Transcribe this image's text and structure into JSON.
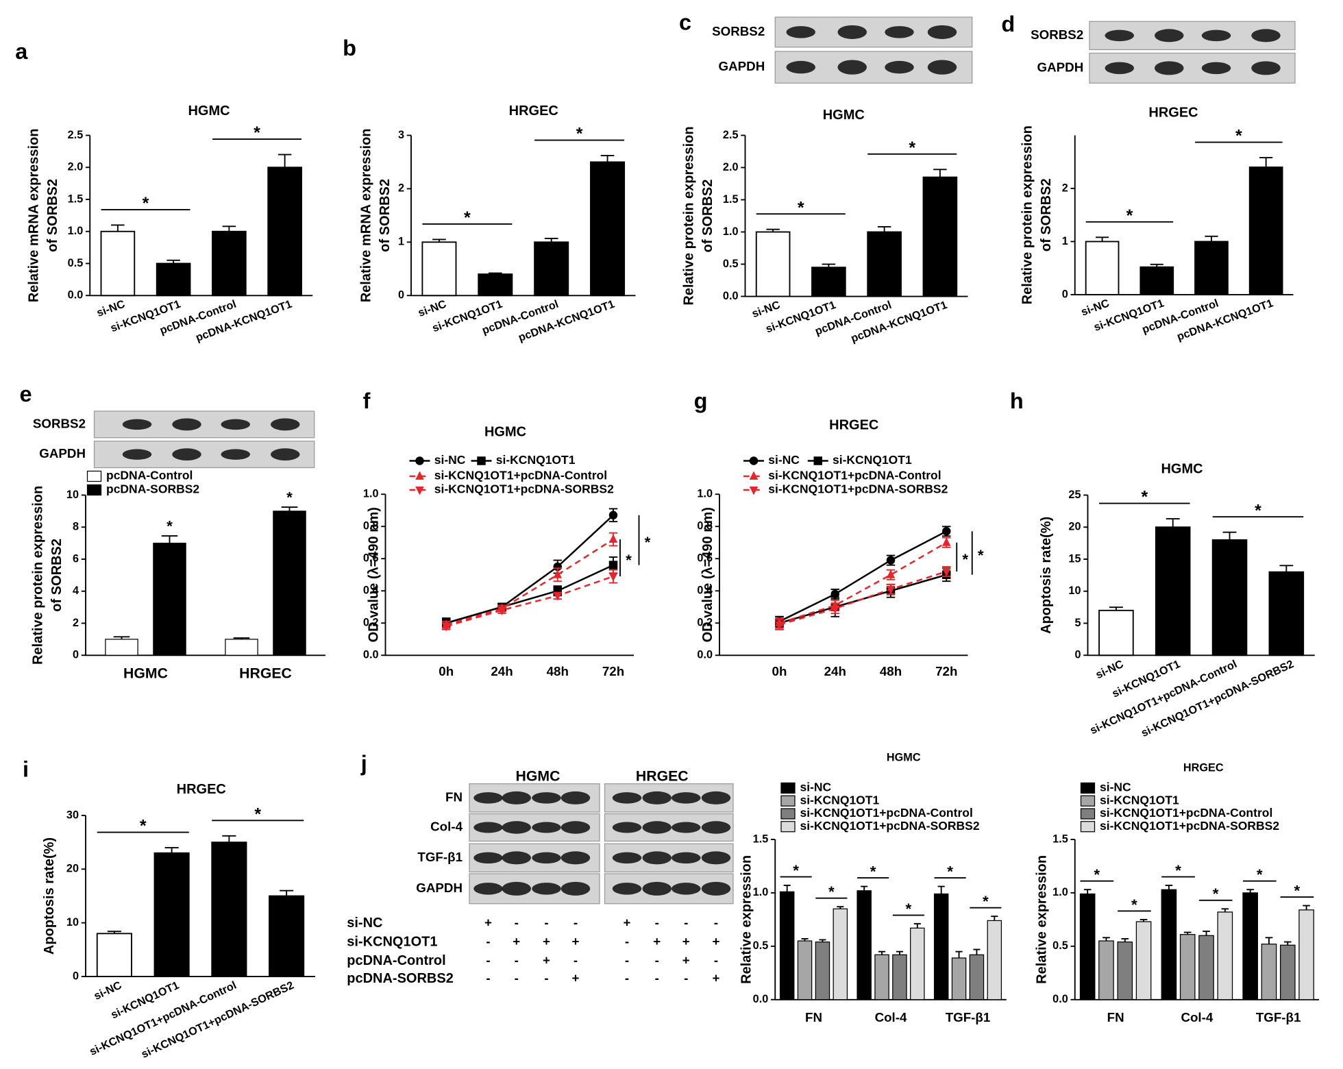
{
  "chart_data": [
    {
      "type": "bar",
      "panel": "a",
      "title": "HGMC",
      "ylabel": [
        "Relative mRNA expression",
        "of SORBS2"
      ],
      "categories": [
        "si-NC",
        "si-KCNQ1OT1",
        "pcDNA-Control",
        "pcDNA-KCNQ1OT1"
      ],
      "values": [
        1.0,
        0.5,
        1.0,
        2.0
      ],
      "errors": [
        0.1,
        0.05,
        0.08,
        0.2
      ],
      "colors": [
        "#ffffff",
        "#000000",
        "#000000",
        "#000000"
      ],
      "ylim": [
        0,
        2.5
      ],
      "yticks": [
        {
          "value": 0,
          "label": "0.0"
        },
        {
          "value": 0.5,
          "label": "0.5"
        },
        {
          "value": 1,
          "label": "1.0"
        },
        {
          "value": 1.5,
          "label": "1.5"
        },
        {
          "value": 2,
          "label": "2.0"
        },
        {
          "value": 2.5,
          "label": "2.5"
        }
      ],
      "annotations": [
        "*",
        "*"
      ]
    },
    {
      "type": "bar",
      "panel": "b",
      "title": "HRGEC",
      "ylabel": [
        "Relative mRNA expression",
        "of SORBS2"
      ],
      "categories": [
        "si-NC",
        "si-KCNQ1OT1",
        "pcDNA-Control",
        "pcDNA-KCNQ1OT1"
      ],
      "values": [
        1.0,
        0.4,
        1.0,
        2.5
      ],
      "errors": [
        0.05,
        0.02,
        0.07,
        0.12
      ],
      "colors": [
        "#ffffff",
        "#000000",
        "#000000",
        "#000000"
      ],
      "ylim": [
        0,
        3
      ],
      "yticks": [
        0,
        1,
        2,
        3
      ],
      "annotations": [
        "*",
        "*"
      ]
    },
    {
      "type": "bar",
      "panel": "c",
      "title": "HGMC",
      "ylabel": [
        "Relative protein expression",
        "of SORBS2"
      ],
      "blot": {
        "rows": [
          "SORBS2",
          "GAPDH"
        ]
      },
      "categories": [
        "si-NC",
        "si-KCNQ1OT1",
        "pcDNA-Control",
        "pcDNA-KCNQ1OT1"
      ],
      "values": [
        1.0,
        0.45,
        1.0,
        1.85
      ],
      "errors": [
        0.04,
        0.05,
        0.08,
        0.12
      ],
      "colors": [
        "#ffffff",
        "#000000",
        "#000000",
        "#000000"
      ],
      "ylim": [
        0,
        2.5
      ],
      "yticks": [
        {
          "value": 0,
          "label": "0.0"
        },
        {
          "value": 0.5,
          "label": "0.5"
        },
        {
          "value": 1,
          "label": "1.0"
        },
        {
          "value": 1.5,
          "label": "1.5"
        },
        {
          "value": 2,
          "label": "2.0"
        },
        {
          "value": 2.5,
          "label": "2.5"
        }
      ],
      "annotations": [
        "*",
        "*"
      ]
    },
    {
      "type": "bar",
      "panel": "d",
      "title": "HRGEC",
      "ylabel": [
        "Relative protein expression",
        "of SORBS2"
      ],
      "blot": {
        "rows": [
          "SORBS2",
          "GAPDH"
        ]
      },
      "categories": [
        "si-NC",
        "si-KCNQ1OT1",
        "pcDNA-Control",
        "pcDNA-KCNQ1OT1"
      ],
      "values": [
        1.0,
        0.52,
        1.0,
        2.4
      ],
      "errors": [
        0.08,
        0.05,
        0.1,
        0.18
      ],
      "colors": [
        "#ffffff",
        "#000000",
        "#000000",
        "#000000"
      ],
      "ylim": [
        0,
        3
      ],
      "yticks": [
        0,
        1,
        2
      ],
      "annotations": [
        "*",
        "*"
      ]
    },
    {
      "type": "grouped_bar",
      "panel": "e",
      "ylabel": [
        "Relative protein expression",
        "of SORBS2"
      ],
      "blot": {
        "rows": [
          "SORBS2",
          "GAPDH"
        ]
      },
      "categories": [
        "HGMC",
        "HRGEC"
      ],
      "series": [
        {
          "name": "pcDNA-Control",
          "color": "#ffffff",
          "values": [
            1.0,
            1.0
          ],
          "errors": [
            0.15,
            0.08
          ]
        },
        {
          "name": "pcDNA-SORBS2",
          "color": "#000000",
          "values": [
            7.0,
            9.0
          ],
          "errors": [
            0.45,
            0.25
          ]
        }
      ],
      "ylim": [
        0,
        10
      ],
      "yticks": [
        0,
        2,
        4,
        6,
        8,
        10
      ],
      "annotations": [
        "*",
        "*"
      ]
    },
    {
      "type": "line",
      "panel": "f",
      "title": "HGMC",
      "ylabel": "OD value (λ=490 nm)",
      "categories": [
        "0h",
        "24h",
        "48h",
        "72h"
      ],
      "series": [
        {
          "name": "si-NC",
          "color": "#000000",
          "marker": "circle",
          "linestyle": "solid",
          "values": [
            0.2,
            0.3,
            0.55,
            0.87
          ],
          "errors": [
            0.03,
            0.02,
            0.04,
            0.04
          ]
        },
        {
          "name": "si-KCNQ1OT1",
          "color": "#000000",
          "marker": "square",
          "linestyle": "solid",
          "values": [
            0.2,
            0.3,
            0.4,
            0.56
          ],
          "errors": [
            0.03,
            0.02,
            0.03,
            0.05
          ]
        },
        {
          "name": "si-KCNQ1OT1+pcDNA-Control",
          "color": "#e8252a",
          "marker": "triangle",
          "linestyle": "dashed",
          "values": [
            0.19,
            0.29,
            0.5,
            0.72
          ],
          "errors": [
            0.02,
            0.02,
            0.04,
            0.04
          ]
        },
        {
          "name": "si-KCNQ1OT1+pcDNA-SORBS2",
          "color": "#e8252a",
          "marker": "triangle-down",
          "linestyle": "dashed",
          "values": [
            0.18,
            0.28,
            0.37,
            0.49
          ],
          "errors": [
            0.02,
            0.02,
            0.02,
            0.04
          ]
        }
      ],
      "ylim": [
        0,
        1.0
      ],
      "yticks": [
        {
          "value": 0,
          "label": "0.0"
        },
        {
          "value": 0.2,
          "label": "0.2"
        },
        {
          "value": 0.4,
          "label": "0.4"
        },
        {
          "value": 0.6,
          "label": "0.6"
        },
        {
          "value": 0.8,
          "label": "0.8"
        },
        {
          "value": 1,
          "label": "1.0"
        }
      ],
      "annotations": [
        "*",
        "*"
      ]
    },
    {
      "type": "line",
      "panel": "g",
      "title": "HRGEC",
      "ylabel": "OD value (λ=490 nm)",
      "categories": [
        "0h",
        "24h",
        "48h",
        "72h"
      ],
      "series": [
        {
          "name": "si-NC",
          "color": "#000000",
          "marker": "circle",
          "linestyle": "solid",
          "values": [
            0.21,
            0.38,
            0.59,
            0.77
          ],
          "errors": [
            0.03,
            0.03,
            0.03,
            0.03
          ]
        },
        {
          "name": "si-KCNQ1OT1",
          "color": "#000000",
          "marker": "square",
          "linestyle": "solid",
          "values": [
            0.2,
            0.3,
            0.4,
            0.5
          ],
          "errors": [
            0.04,
            0.06,
            0.04,
            0.04
          ]
        },
        {
          "name": "si-KCNQ1OT1+pcDNA-Control",
          "color": "#e8252a",
          "marker": "triangle",
          "linestyle": "dashed",
          "values": [
            0.2,
            0.31,
            0.5,
            0.7
          ],
          "errors": [
            0.03,
            0.03,
            0.03,
            0.03
          ]
        },
        {
          "name": "si-KCNQ1OT1+pcDNA-SORBS2",
          "color": "#e8252a",
          "marker": "triangle-down",
          "linestyle": "dashed",
          "values": [
            0.19,
            0.29,
            0.41,
            0.52
          ],
          "errors": [
            0.03,
            0.03,
            0.03,
            0.03
          ]
        }
      ],
      "ylim": [
        0,
        1.0
      ],
      "yticks": [
        {
          "value": 0,
          "label": "0.0"
        },
        {
          "value": 0.2,
          "label": "0.2"
        },
        {
          "value": 0.4,
          "label": "0.4"
        },
        {
          "value": 0.6,
          "label": "0.6"
        },
        {
          "value": 0.8,
          "label": "0.8"
        },
        {
          "value": 1,
          "label": "1.0"
        }
      ],
      "annotations": [
        "*",
        "*"
      ]
    },
    {
      "type": "bar",
      "panel": "h",
      "title": "HGMC",
      "ylabel": "Apoptosis rate(%)",
      "categories": [
        "si-NC",
        "si-KCNQ1OT1",
        "si-KCNQ1OT1+pcDNA-Control",
        "si-KCNQ1OT1+pcDNA-SORBS2"
      ],
      "values": [
        7,
        20,
        18,
        13
      ],
      "errors": [
        0.5,
        1.3,
        1.2,
        1.0
      ],
      "colors": [
        "#ffffff",
        "#000000",
        "#000000",
        "#000000"
      ],
      "ylim": [
        0,
        25
      ],
      "yticks": [
        0,
        5,
        10,
        15,
        20,
        25
      ],
      "annotations": [
        "*",
        "*"
      ]
    },
    {
      "type": "bar",
      "panel": "i",
      "title": "HRGEC",
      "ylabel": "Apoptosis rate(%)",
      "categories": [
        "si-NC",
        "si-KCNQ1OT1",
        "si-KCNQ1OT1+pcDNA-Control",
        "si-KCNQ1OT1+pcDNA-SORBS2"
      ],
      "values": [
        8,
        23,
        25,
        15
      ],
      "errors": [
        0.4,
        1.0,
        1.2,
        1.0
      ],
      "colors": [
        "#ffffff",
        "#000000",
        "#000000",
        "#000000"
      ],
      "ylim": [
        0,
        30
      ],
      "yticks": [
        0,
        10,
        20,
        30
      ],
      "annotations": [
        "*",
        "*"
      ]
    },
    {
      "type": "grouped_bar",
      "panel": "j",
      "title": "HGMC",
      "ylabel": "Relative expression",
      "blot": {
        "rows": [
          "FN",
          "Col-4",
          "TGF-β1",
          "GAPDH"
        ],
        "groups": [
          "HGMC",
          "HRGEC"
        ],
        "conditions": [
          {
            "name": "si-NC",
            "signs": [
              "+",
              "-",
              "-",
              "-",
              "+",
              "-",
              "-",
              "-"
            ]
          },
          {
            "name": "si-KCNQ1OT1",
            "signs": [
              "-",
              "+",
              "+",
              "+",
              "-",
              "+",
              "+",
              "+"
            ]
          },
          {
            "name": "pcDNA-Control",
            "signs": [
              "-",
              "-",
              "+",
              "-",
              "-",
              "-",
              "+",
              "-"
            ]
          },
          {
            "name": "pcDNA-SORBS2",
            "signs": [
              "-",
              "-",
              "-",
              "+",
              "-",
              "-",
              "-",
              "+"
            ]
          }
        ]
      },
      "categories": [
        "FN",
        "Col-4",
        "TGF-β1"
      ],
      "series": [
        {
          "name": "si-NC",
          "color": "#000000",
          "values": [
            1.01,
            1.02,
            0.99
          ],
          "errors": [
            0.06,
            0.04,
            0.07
          ]
        },
        {
          "name": "si-KCNQ1OT1",
          "color": "#a6a6a6",
          "values": [
            0.55,
            0.42,
            0.39
          ],
          "errors": [
            0.02,
            0.03,
            0.06
          ]
        },
        {
          "name": "si-KCNQ1OT1+pcDNA-Control",
          "color": "#7f7f7f",
          "values": [
            0.54,
            0.42,
            0.42
          ],
          "errors": [
            0.02,
            0.03,
            0.05
          ]
        },
        {
          "name": "si-KCNQ1OT1+pcDNA-SORBS2",
          "color": "#dcdcdc",
          "values": [
            0.85,
            0.67,
            0.74
          ],
          "errors": [
            0.02,
            0.04,
            0.04
          ]
        }
      ],
      "ylim": [
        0,
        1.5
      ],
      "yticks": [
        {
          "value": 0,
          "label": "0.0"
        },
        {
          "value": 0.5,
          "label": "0.5"
        },
        {
          "value": 1,
          "label": "1.0"
        },
        {
          "value": 1.5,
          "label": "1.5"
        }
      ],
      "annotations": [
        "*",
        "*",
        "*",
        "*",
        "*",
        "*"
      ]
    },
    {
      "type": "grouped_bar",
      "title": "HRGEC",
      "ylabel": "Relative expression",
      "categories": [
        "FN",
        "Col-4",
        "TGF-β1"
      ],
      "series": [
        {
          "name": "si-NC",
          "color": "#000000",
          "values": [
            0.99,
            1.03,
            1.0
          ],
          "errors": [
            0.04,
            0.04,
            0.03
          ]
        },
        {
          "name": "si-KCNQ1OT1",
          "color": "#a6a6a6",
          "values": [
            0.55,
            0.61,
            0.52
          ],
          "errors": [
            0.03,
            0.02,
            0.06
          ]
        },
        {
          "name": "si-KCNQ1OT1+pcDNA-Control",
          "color": "#7f7f7f",
          "values": [
            0.54,
            0.6,
            0.51
          ],
          "errors": [
            0.03,
            0.04,
            0.03
          ]
        },
        {
          "name": "si-KCNQ1OT1+pcDNA-SORBS2",
          "color": "#dcdcdc",
          "values": [
            0.73,
            0.82,
            0.84
          ],
          "errors": [
            0.02,
            0.03,
            0.04
          ]
        }
      ],
      "ylim": [
        0,
        1.5
      ],
      "yticks": [
        {
          "value": 0,
          "label": "0.0"
        },
        {
          "value": 0.5,
          "label": "0.5"
        },
        {
          "value": 1,
          "label": "1.0"
        },
        {
          "value": 1.5,
          "label": "1.5"
        }
      ],
      "annotations": [
        "*",
        "*",
        "*",
        "*",
        "*",
        "*"
      ]
    }
  ]
}
